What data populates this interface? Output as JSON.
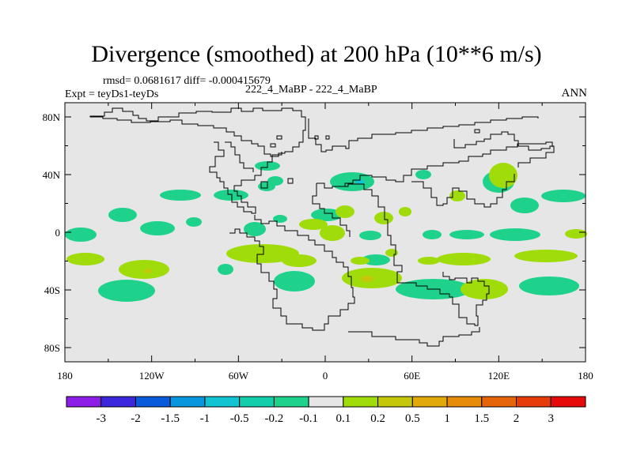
{
  "title": "Divergence (smoothed) at 200 hPa (10**6 m/s)",
  "stats": "rmsd= 0.0681617 diff= -0.000415679",
  "experiment": "Expt = teyDs1-teyDs",
  "case": "222_4_MaBP - 222_4_MaBP",
  "period": "ANN",
  "lat_labels": [
    "80N",
    "40N",
    "0",
    "40S",
    "80S"
  ],
  "lat_values": [
    80,
    40,
    0,
    -40,
    -80
  ],
  "lon_labels": [
    "180",
    "120W",
    "60W",
    "0",
    "60E",
    "120E",
    "180"
  ],
  "lon_values": [
    -180,
    -120,
    -60,
    0,
    60,
    120,
    180
  ],
  "colorbar": {
    "labels": [
      "-3",
      "-2",
      "-1.5",
      "-1",
      "-0.5",
      "-0.2",
      "-0.1",
      "0.1",
      "0.2",
      "0.5",
      "1",
      "1.5",
      "2",
      "3"
    ],
    "colors": [
      "#8c1ee6",
      "#3c28dc",
      "#0a5adc",
      "#0a96dc",
      "#14c3d2",
      "#14cdaa",
      "#1ed28c",
      "#e6e6e6",
      "#a0dc0a",
      "#c3c80a",
      "#e1aa0a",
      "#e68c0a",
      "#e6640a",
      "#e63c0a",
      "#e60a0a"
    ]
  },
  "map_colors": {
    "background": "#e6e6e6",
    "negative_light": "#1ed28c",
    "negative_strong": "#14c3d2",
    "positive_light": "#a0dc0a",
    "positive_strong": "#c3c80a"
  }
}
